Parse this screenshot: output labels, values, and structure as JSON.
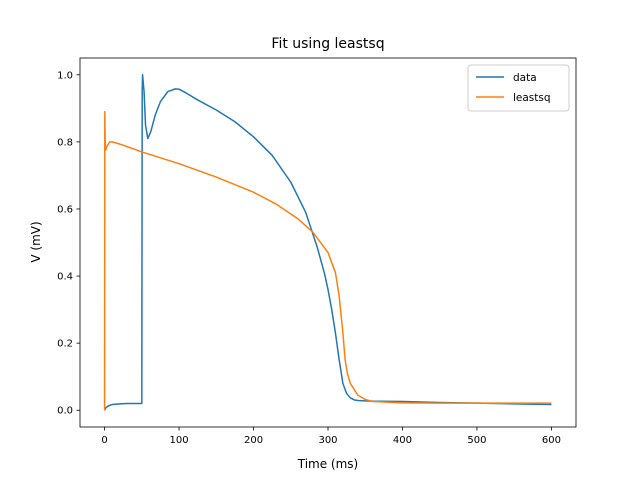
{
  "chart_data": {
    "type": "line",
    "title": "Fit using leastsq",
    "xlabel": "Time (ms)",
    "ylabel": "V (mV)",
    "xlim": [
      -33,
      633
    ],
    "ylim": [
      -0.05,
      1.05
    ],
    "xticks": [
      0,
      100,
      200,
      300,
      400,
      500,
      600
    ],
    "yticks": [
      0.0,
      0.2,
      0.4,
      0.6,
      0.8,
      1.0
    ],
    "xtick_labels": [
      "0",
      "100",
      "200",
      "300",
      "400",
      "500",
      "600"
    ],
    "ytick_labels": [
      "0.0",
      "0.2",
      "0.4",
      "0.6",
      "0.8",
      "1.0"
    ],
    "grid": false,
    "legend_position": "top-right",
    "series": [
      {
        "name": "data",
        "color": "#1f77b4",
        "x": [
          0,
          2,
          5,
          10,
          20,
          30,
          40,
          50,
          50.5,
          51,
          53,
          55,
          58,
          62,
          68,
          75,
          85,
          95,
          100,
          110,
          125,
          150,
          175,
          200,
          225,
          250,
          270,
          285,
          295,
          300,
          305,
          310,
          315,
          320,
          325,
          330,
          335,
          340,
          350,
          360,
          400,
          450,
          500,
          550,
          600
        ],
        "y": [
          0.0,
          0.008,
          0.013,
          0.017,
          0.019,
          0.02,
          0.02,
          0.02,
          0.95,
          1.0,
          0.95,
          0.85,
          0.81,
          0.83,
          0.88,
          0.92,
          0.95,
          0.958,
          0.957,
          0.945,
          0.925,
          0.895,
          0.86,
          0.815,
          0.76,
          0.68,
          0.59,
          0.49,
          0.41,
          0.36,
          0.3,
          0.23,
          0.15,
          0.08,
          0.05,
          0.037,
          0.031,
          0.029,
          0.028,
          0.027,
          0.026,
          0.023,
          0.021,
          0.019,
          0.017
        ]
      },
      {
        "name": "leastsq",
        "color": "#ff7f0e",
        "x": [
          0,
          0.3,
          1.0,
          1.5,
          2.0,
          4.0,
          7.0,
          10,
          15,
          25,
          50,
          100,
          150,
          200,
          230,
          260,
          280,
          300,
          310,
          315,
          320,
          323,
          326,
          330,
          340,
          350,
          360,
          400,
          450,
          500,
          550,
          600
        ],
        "y": [
          0.0,
          0.89,
          0.78,
          0.775,
          0.78,
          0.79,
          0.8,
          0.8,
          0.797,
          0.79,
          0.77,
          0.735,
          0.695,
          0.65,
          0.615,
          0.57,
          0.53,
          0.47,
          0.41,
          0.34,
          0.23,
          0.15,
          0.11,
          0.08,
          0.045,
          0.032,
          0.026,
          0.022,
          0.021,
          0.021,
          0.021,
          0.021
        ]
      }
    ]
  }
}
